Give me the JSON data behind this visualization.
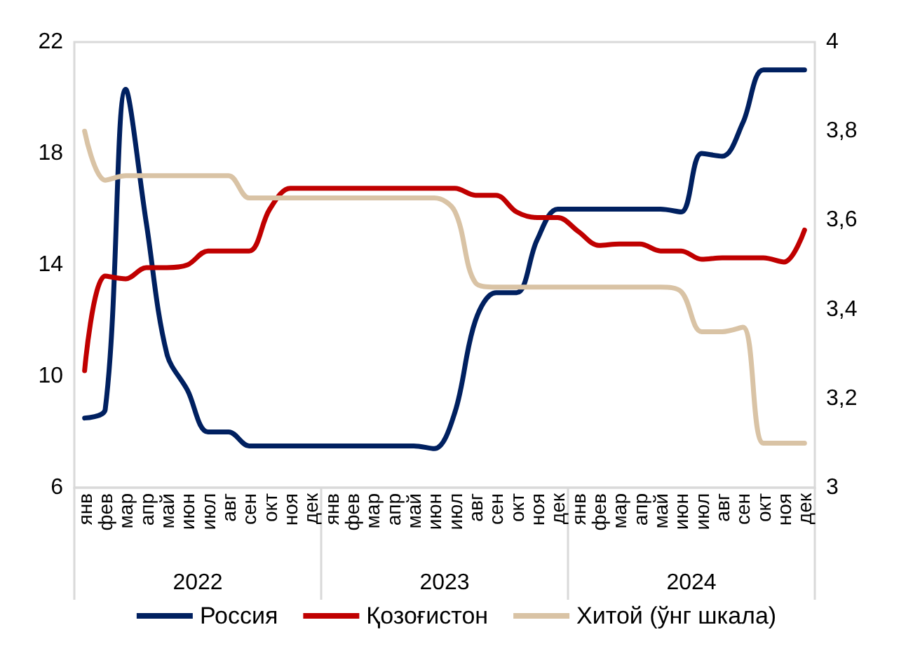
{
  "chart_data": {
    "type": "line",
    "categories": [
      "янв",
      "фев",
      "мар",
      "апр",
      "май",
      "июн",
      "июл",
      "авг",
      "сен",
      "окт",
      "ноя",
      "дек",
      "янв",
      "фев",
      "мар",
      "апр",
      "май",
      "июн",
      "июл",
      "авг",
      "сен",
      "окт",
      "ноя",
      "дек",
      "янв",
      "фев",
      "мар",
      "апр",
      "май",
      "июн",
      "июл",
      "авг",
      "сен",
      "окт",
      "ноя",
      "дек"
    ],
    "annotations": [
      "2022",
      "2023",
      "2024"
    ],
    "series": [
      {
        "name": "Россия",
        "color": "#002060",
        "values": [
          8.5,
          8.8,
          20.3,
          15.5,
          10.8,
          9.5,
          8.0,
          8.0,
          7.5,
          7.5,
          7.5,
          7.5,
          7.5,
          7.5,
          7.5,
          7.5,
          7.5,
          7.4,
          8.7,
          12.0,
          13.0,
          13.0,
          14.9,
          16.0,
          16.0,
          16.0,
          16.0,
          16.0,
          16.0,
          15.9,
          18.0,
          17.9,
          19.1,
          21.0,
          21.0,
          21.0
        ]
      },
      {
        "name": "Қозоғистон",
        "color": "#c00000",
        "values": [
          10.2,
          13.6,
          13.5,
          13.9,
          13.9,
          14.0,
          14.5,
          14.5,
          14.5,
          16.0,
          16.75,
          16.75,
          16.75,
          16.75,
          16.75,
          16.75,
          16.75,
          16.75,
          16.75,
          16.5,
          16.5,
          15.9,
          15.7,
          15.7,
          15.2,
          14.7,
          14.75,
          14.75,
          14.5,
          14.5,
          14.2,
          14.25,
          14.25,
          14.25,
          14.1,
          15.25
        ]
      },
      {
        "name": "Хитой (ўнг шкала)",
        "color": "#d9c3a5",
        "axis": "y2",
        "values": [
          3.8,
          3.69,
          3.7,
          3.7,
          3.7,
          3.7,
          3.7,
          3.7,
          3.65,
          3.65,
          3.65,
          3.65,
          3.65,
          3.65,
          3.65,
          3.65,
          3.65,
          3.65,
          3.62,
          3.46,
          3.45,
          3.45,
          3.45,
          3.45,
          3.45,
          3.45,
          3.45,
          3.45,
          3.45,
          3.44,
          3.35,
          3.35,
          3.36,
          3.1,
          3.1,
          3.1
        ]
      }
    ],
    "ylim": [
      6,
      22
    ],
    "yticks": [
      6,
      10,
      14,
      18,
      22
    ],
    "y2lim": [
      3,
      4
    ],
    "y2ticks": [
      3,
      {
        "value": 3.2,
        "label": "3,2"
      },
      {
        "value": 3.4,
        "label": "3,4"
      },
      {
        "value": 3.6,
        "label": "3,6"
      },
      {
        "value": 3.8,
        "label": "3,8"
      },
      4
    ],
    "grid": false,
    "legend": "bottom",
    "marker": "none",
    "line_style": "solid"
  }
}
